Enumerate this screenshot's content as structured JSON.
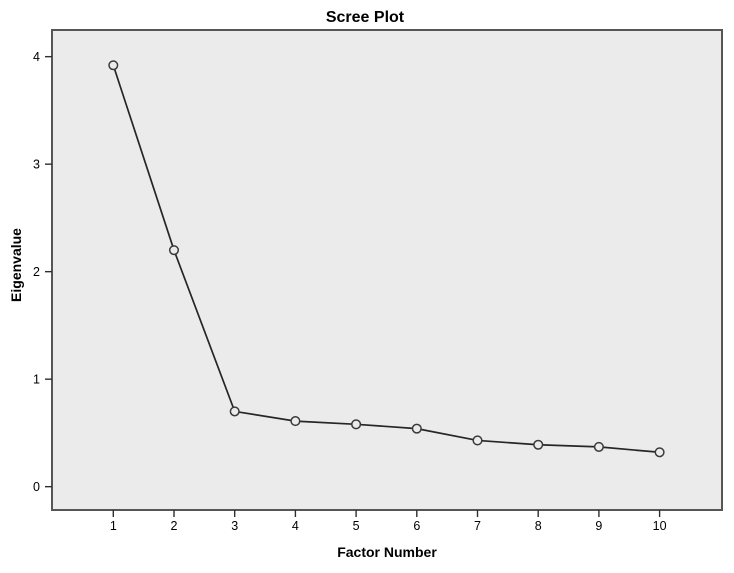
{
  "chart_data": {
    "type": "line",
    "title": "Scree Plot",
    "xlabel": "Factor Number",
    "ylabel": "Eigenvalue",
    "categories": [
      1,
      2,
      3,
      4,
      5,
      6,
      7,
      8,
      9,
      10
    ],
    "series": [
      {
        "name": "Eigenvalues",
        "values": [
          3.92,
          2.2,
          0.7,
          0.61,
          0.58,
          0.54,
          0.43,
          0.39,
          0.37,
          0.32
        ]
      }
    ],
    "yticks": [
      0,
      1,
      2,
      3,
      4
    ],
    "ylim": [
      -0.217,
      4.248
    ],
    "grid": "off",
    "legend": "none",
    "marker": "open-circle",
    "colors": {
      "page_background": "#ffffff",
      "plot_background": "#ebebeb",
      "frame": "#565656",
      "line": "#262626",
      "marker_stroke": "#3a3a3a",
      "tick": "#2e2e2e",
      "text": "#000000"
    }
  }
}
